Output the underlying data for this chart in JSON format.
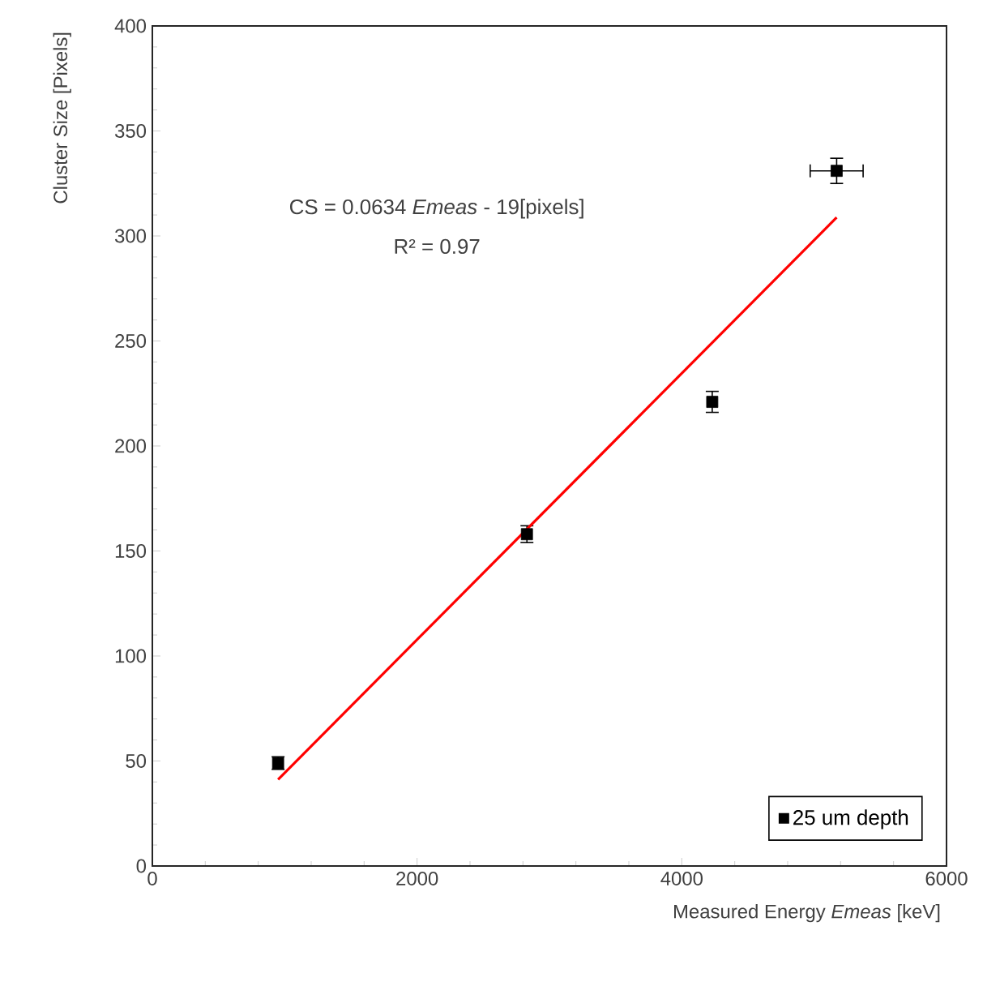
{
  "chart_data": {
    "type": "scatter",
    "xlabel": "Measured Energy *Emeas* [keV]",
    "ylabel": "Cluster Size [Pixels]",
    "annotations": [
      "CS = 0.0634 *Emeas* - 19[pixels]",
      "R² = 0.97"
    ],
    "series": [
      {
        "name": "25 um depth",
        "color": "#000000",
        "marker": "square",
        "x": [
          950,
          2830,
          4230,
          5170
        ],
        "values": [
          49,
          158,
          221,
          331
        ],
        "errors": [
          3,
          4,
          5,
          6
        ],
        "xerrors": [
          null,
          null,
          null,
          200
        ]
      },
      {
        "type": "line",
        "color": "#ff0000",
        "line_style": "solid",
        "marker": "none",
        "x": [
          950,
          5170
        ],
        "values": [
          41.2,
          308.8
        ]
      }
    ],
    "xlim": [
      0,
      6000
    ],
    "ylim": [
      0,
      400
    ],
    "xticks": [
      0,
      2000,
      4000,
      6000
    ],
    "yticks": [
      0,
      50,
      100,
      150,
      200,
      250,
      300,
      350,
      400
    ],
    "grid": false,
    "legend": "bottom right"
  }
}
